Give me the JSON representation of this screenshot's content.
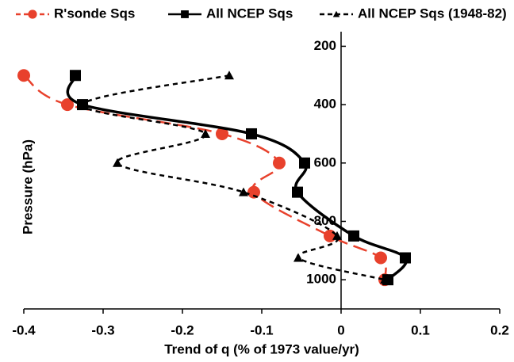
{
  "chart_data": {
    "type": "line",
    "xlabel": "Trend of q (% of 1973 value/yr)",
    "ylabel": "Pressure (hPa)",
    "y": [
      300,
      400,
      500,
      600,
      700,
      850,
      925,
      1000
    ],
    "series": [
      {
        "name": "R'sonde Sqs",
        "color": "#e8412c",
        "marker": "circle",
        "dash": "long",
        "values": [
          -0.4,
          -0.345,
          -0.15,
          -0.078,
          -0.11,
          -0.014,
          0.05,
          0.055
        ]
      },
      {
        "name": "All NCEP Sqs",
        "color": "#000000",
        "marker": "square",
        "dash": "solid",
        "values": [
          -0.335,
          -0.326,
          -0.113,
          -0.046,
          -0.055,
          0.016,
          0.081,
          0.059
        ]
      },
      {
        "name": "All NCEP Sqs (1948-82)",
        "color": "#000000",
        "marker": "triangle",
        "dash": "short",
        "values": [
          -0.141,
          -0.326,
          -0.171,
          -0.282,
          -0.123,
          -0.005,
          -0.054,
          0.055
        ]
      }
    ],
    "xlim": [
      -0.4,
      0.2
    ],
    "xticks": [
      -0.4,
      -0.3,
      -0.2,
      -0.1,
      0,
      0.1,
      0.2
    ],
    "ylim": [
      1100,
      150
    ],
    "yticks": [
      200,
      400,
      600,
      800,
      1000
    ],
    "y_axis_at": 0,
    "legend": "top"
  }
}
